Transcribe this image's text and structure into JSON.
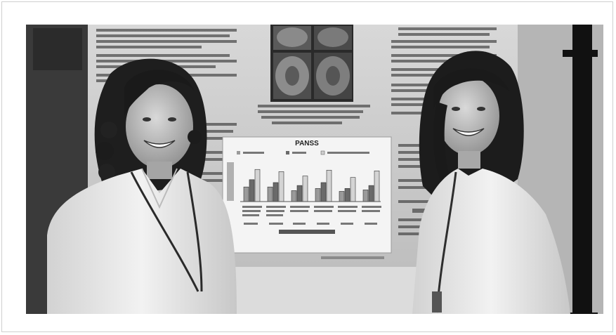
{
  "photo": {
    "description_free": true
  },
  "poster": {
    "chart_title": "PANSS",
    "legend": [
      "",
      "",
      ""
    ],
    "ylabel": "",
    "xlabel": ""
  },
  "chart_data": {
    "type": "bar",
    "title": "PANSS",
    "categories": [
      "",
      "",
      "",
      "",
      "",
      ""
    ],
    "series": [
      {
        "values": [
          2,
          2,
          1.5,
          1.8,
          1.4,
          1.6
        ]
      },
      {
        "values": [
          3,
          2.6,
          2.2,
          2.6,
          1.8,
          2.2
        ]
      },
      {
        "values": [
          4.4,
          4.1,
          3.5,
          4.3,
          3.3,
          4.2
        ]
      }
    ],
    "ylim": [
      0,
      5
    ],
    "xlabel": "",
    "ylabel": ""
  }
}
